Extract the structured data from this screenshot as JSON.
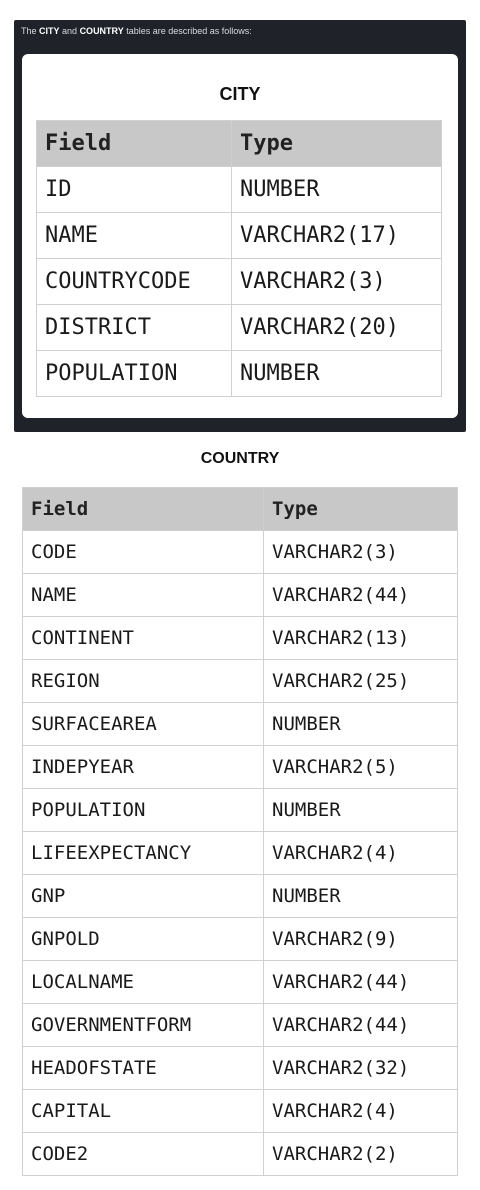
{
  "intro": {
    "prefix": "The ",
    "city": "CITY",
    "and": " and ",
    "country": "COUNTRY",
    "suffix": " tables are described as follows:"
  },
  "city_table": {
    "title": "CITY",
    "headers": [
      "Field",
      "Type"
    ],
    "rows": [
      [
        "ID",
        "NUMBER"
      ],
      [
        "NAME",
        "VARCHAR2(17)"
      ],
      [
        "COUNTRYCODE",
        "VARCHAR2(3)"
      ],
      [
        "DISTRICT",
        "VARCHAR2(20)"
      ],
      [
        "POPULATION",
        "NUMBER"
      ]
    ]
  },
  "country_table": {
    "title": "COUNTRY",
    "headers": [
      "Field",
      "Type"
    ],
    "rows": [
      [
        "CODE",
        "VARCHAR2(3)"
      ],
      [
        "NAME",
        "VARCHAR2(44)"
      ],
      [
        "CONTINENT",
        "VARCHAR2(13)"
      ],
      [
        "REGION",
        "VARCHAR2(25)"
      ],
      [
        "SURFACEAREA",
        "NUMBER"
      ],
      [
        "INDEPYEAR",
        "VARCHAR2(5)"
      ],
      [
        "POPULATION",
        "NUMBER"
      ],
      [
        "LIFEEXPECTANCY",
        "VARCHAR2(4)"
      ],
      [
        "GNP",
        "NUMBER"
      ],
      [
        "GNPOLD",
        "VARCHAR2(9)"
      ],
      [
        "LOCALNAME",
        "VARCHAR2(44)"
      ],
      [
        "GOVERNMENTFORM",
        "VARCHAR2(44)"
      ],
      [
        "HEADOFSTATE",
        "VARCHAR2(32)"
      ],
      [
        "CAPITAL",
        "VARCHAR2(4)"
      ],
      [
        "CODE2",
        "VARCHAR2(2)"
      ]
    ]
  }
}
